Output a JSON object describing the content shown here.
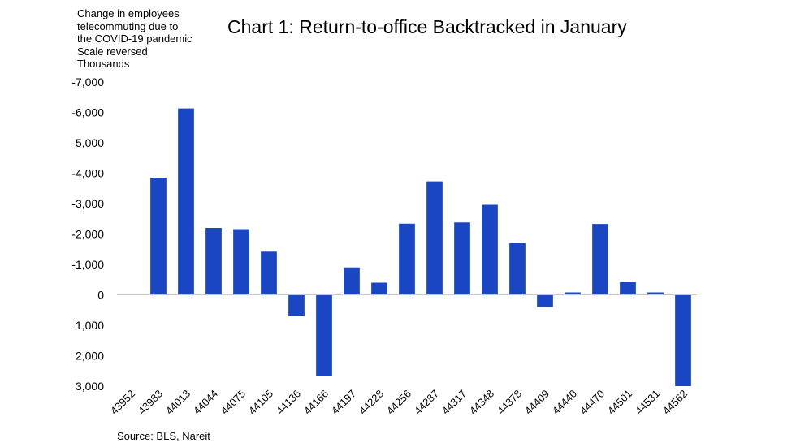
{
  "chart_data": {
    "type": "bar",
    "title": "Chart 1: Return-to-office Backtracked in January",
    "ylabel_lines": [
      "Change in employees",
      "telecommuting due to",
      "the COVID-19 pandemic",
      "Scale reversed",
      "Thousands"
    ],
    "source": "Source: BLS, Nareit",
    "categories": [
      "43952",
      "43983",
      "44013",
      "44044",
      "44075",
      "44105",
      "44136",
      "44166",
      "44197",
      "44228",
      "44256",
      "44287",
      "44317",
      "44348",
      "44378",
      "44409",
      "44440",
      "44470",
      "44501",
      "44531",
      "44562"
    ],
    "series": [
      {
        "values": [
          0,
          -3850,
          -6130,
          -2200,
          -2160,
          -1420,
          700,
          2680,
          -900,
          -400,
          -2340,
          -3730,
          -2380,
          -2960,
          -1700,
          400,
          -80,
          -2330,
          -420,
          -80,
          3000
        ]
      }
    ],
    "ylim": [
      -7000,
      3000
    ],
    "yticks": [
      -7000,
      -6000,
      -5000,
      -4000,
      -3000,
      -2000,
      -1000,
      0,
      1000,
      2000,
      3000
    ],
    "ytick_labels": [
      "-7,000",
      "-6,000",
      "-5,000",
      "-4,000",
      "-3,000",
      "-2,000",
      "-1,000",
      "0",
      "1,000",
      "2,000",
      "3,000"
    ],
    "y_reversed": true,
    "bar_color": "#1a46c4",
    "axis_color": "#c8c8c8",
    "grid": false,
    "legend": "none"
  }
}
